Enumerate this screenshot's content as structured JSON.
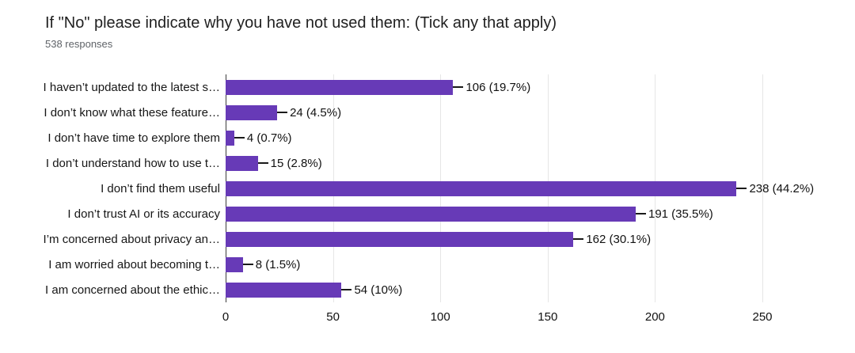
{
  "chart_data": {
    "type": "bar",
    "orientation": "horizontal",
    "title": "If \"No\" please indicate why you have not used them: (Tick any that apply)",
    "subtitle": "538 responses",
    "categories": [
      "I haven’t updated to the latest s…",
      "I don’t know what these feature…",
      "I don’t have time to explore them",
      "I don’t understand how to use t…",
      "I don’t find them useful",
      "I don’t trust AI or its accuracy",
      "I’m concerned about privacy an…",
      "I am worried about becoming t…",
      "I am concerned about the ethic…"
    ],
    "values": [
      106,
      24,
      4,
      15,
      238,
      191,
      162,
      8,
      54
    ],
    "value_labels": [
      "106 (19.7%)",
      "24 (4.5%)",
      "4 (0.7%)",
      "15 (2.8%)",
      "238 (44.2%)",
      "191 (35.5%)",
      "162 (30.1%)",
      "8 (1.5%)",
      "54 (10%)"
    ],
    "xlim": [
      0,
      250
    ],
    "xticks": [
      0,
      50,
      100,
      150,
      200,
      250
    ],
    "grid": true,
    "legend": "none",
    "bar_color": "#673ab7",
    "leader_color": "#1a1a1a"
  }
}
